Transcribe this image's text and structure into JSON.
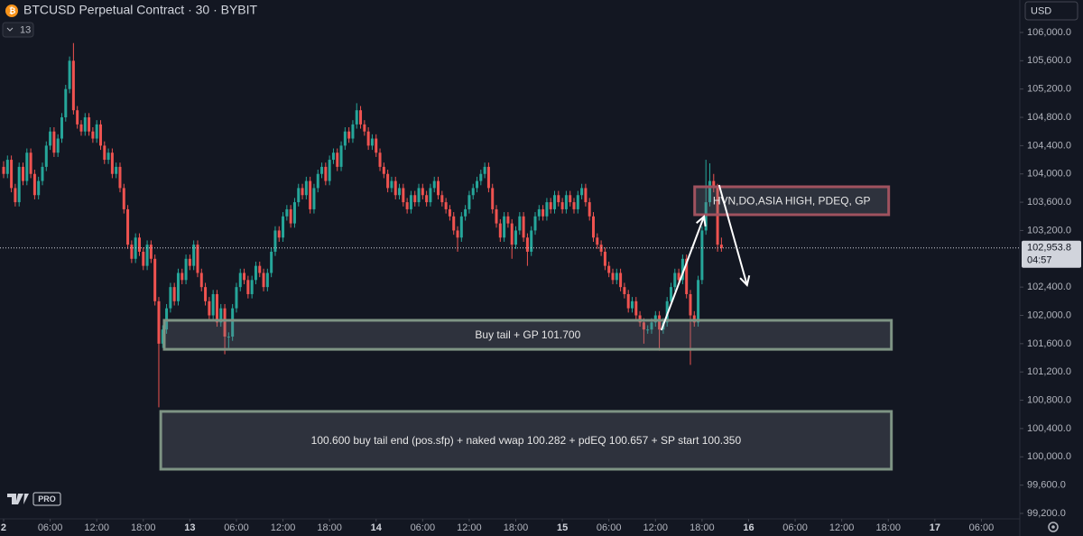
{
  "chart_data": {
    "type": "candlestick",
    "title": "BTCUSD Perpetual Contract · 30 · BYBIT",
    "indicators_badge": "13",
    "currency": "USD",
    "logo_badge": "PRO",
    "up_color": "#26a69a",
    "down_color": "#ef5350",
    "xlim": [
      -0.93,
      261.9
    ],
    "ylim": [
      99123,
      106459
    ],
    "xticks": [
      {
        "value": 0,
        "label": "2"
      },
      {
        "value": 12,
        "label": "06:00"
      },
      {
        "value": 24,
        "label": "12:00"
      },
      {
        "value": 36,
        "label": "18:00"
      },
      {
        "value": 48,
        "label": "13"
      },
      {
        "value": 60,
        "label": "06:00"
      },
      {
        "value": 72,
        "label": "12:00"
      },
      {
        "value": 84,
        "label": "18:00"
      },
      {
        "value": 96,
        "label": "14"
      },
      {
        "value": 108,
        "label": "06:00"
      },
      {
        "value": 120,
        "label": "12:00"
      },
      {
        "value": 132,
        "label": "18:00"
      },
      {
        "value": 144,
        "label": "15"
      },
      {
        "value": 156,
        "label": "06:00"
      },
      {
        "value": 168,
        "label": "12:00"
      },
      {
        "value": 180,
        "label": "18:00"
      },
      {
        "value": 192,
        "label": "16"
      },
      {
        "value": 204,
        "label": "06:00"
      },
      {
        "value": 216,
        "label": "12:00"
      },
      {
        "value": 228,
        "label": "18:00"
      },
      {
        "value": 240,
        "label": "17"
      },
      {
        "value": 252,
        "label": "06:00"
      }
    ],
    "yticks": [
      {
        "value": 99200,
        "label": "99,200.0"
      },
      {
        "value": 99600,
        "label": "99,600.0"
      },
      {
        "value": 100000,
        "label": "100,000.0"
      },
      {
        "value": 100400,
        "label": "100,400.0"
      },
      {
        "value": 100800,
        "label": "100,800.0"
      },
      {
        "value": 101200,
        "label": "101,200.0"
      },
      {
        "value": 101600,
        "label": "101,600.0"
      },
      {
        "value": 102000,
        "label": "102,000.0"
      },
      {
        "value": 102400,
        "label": "102,400.0"
      },
      {
        "value": 103200,
        "label": "103,200.0"
      },
      {
        "value": 103600,
        "label": "103,600.0"
      },
      {
        "value": 104000,
        "label": "104,000.0"
      },
      {
        "value": 104400,
        "label": "104,400.0"
      },
      {
        "value": 104800,
        "label": "104,800.0"
      },
      {
        "value": 105200,
        "label": "105,200.0"
      },
      {
        "value": 105600,
        "label": "105,600.0"
      },
      {
        "value": 106000,
        "label": "106,000.0"
      }
    ],
    "last_price": {
      "value": 102953.8,
      "label": "102,953.8"
    },
    "countdown": "04:57",
    "ohlc": [
      [
        104100,
        104180,
        103940,
        104000
      ],
      [
        104000,
        104260,
        103940,
        104200
      ],
      [
        104200,
        104260,
        103740,
        103800
      ],
      [
        103800,
        103860,
        103540,
        103600
      ],
      [
        103600,
        104160,
        103540,
        104100
      ],
      [
        104100,
        104160,
        103840,
        103900
      ],
      [
        103900,
        104360,
        103840,
        104300
      ],
      [
        104300,
        104360,
        103940,
        104000
      ],
      [
        104000,
        104060,
        103640,
        103700
      ],
      [
        103700,
        103960,
        103640,
        103900
      ],
      [
        103900,
        104160,
        103840,
        104100
      ],
      [
        104100,
        104460,
        104040,
        104400
      ],
      [
        104400,
        104660,
        104340,
        104600
      ],
      [
        104600,
        104660,
        104240,
        104300
      ],
      [
        104300,
        104560,
        104240,
        104500
      ],
      [
        104500,
        104860,
        104440,
        104800
      ],
      [
        104800,
        105260,
        104740,
        105200
      ],
      [
        105200,
        105660,
        105140,
        105600
      ],
      [
        105600,
        105850,
        104840,
        104900
      ],
      [
        104900,
        104960,
        104640,
        104700
      ],
      [
        104700,
        104760,
        104540,
        104600
      ],
      [
        104600,
        104860,
        104540,
        104800
      ],
      [
        104800,
        104860,
        104540,
        104600
      ],
      [
        104600,
        104660,
        104440,
        104500
      ],
      [
        104500,
        104760,
        104440,
        104700
      ],
      [
        104700,
        104760,
        104340,
        104400
      ],
      [
        104400,
        104460,
        104140,
        104200
      ],
      [
        104200,
        104360,
        104140,
        104300
      ],
      [
        104300,
        104360,
        103940,
        104000
      ],
      [
        104000,
        104160,
        103940,
        104100
      ],
      [
        104100,
        104160,
        103740,
        103800
      ],
      [
        103800,
        103860,
        103440,
        103500
      ],
      [
        103500,
        103560,
        102940,
        103000
      ],
      [
        103000,
        103060,
        102740,
        102800
      ],
      [
        102800,
        103160,
        102740,
        103100
      ],
      [
        103100,
        103160,
        102840,
        102900
      ],
      [
        102900,
        102960,
        102640,
        102700
      ],
      [
        102700,
        103060,
        102640,
        103000
      ],
      [
        103000,
        103060,
        102740,
        102800
      ],
      [
        102800,
        102860,
        102140,
        102200
      ],
      [
        102200,
        102260,
        100700,
        101600
      ],
      [
        101600,
        101860,
        101540,
        101800
      ],
      [
        101800,
        102160,
        101740,
        102100
      ],
      [
        102100,
        102460,
        102040,
        102400
      ],
      [
        102400,
        102460,
        102140,
        102200
      ],
      [
        102200,
        102660,
        102140,
        102600
      ],
      [
        102600,
        102660,
        102440,
        102500
      ],
      [
        102500,
        102860,
        102440,
        102800
      ],
      [
        102800,
        102860,
        102640,
        102700
      ],
      [
        102700,
        103060,
        102640,
        103000
      ],
      [
        103000,
        103060,
        102540,
        102600
      ],
      [
        102600,
        102660,
        102340,
        102400
      ],
      [
        102400,
        102460,
        102140,
        102200
      ],
      [
        102200,
        102260,
        101940,
        102000
      ],
      [
        102000,
        102360,
        101940,
        102300
      ],
      [
        102300,
        102360,
        101840,
        101900
      ],
      [
        101900,
        102160,
        101840,
        102100
      ],
      [
        102100,
        102160,
        101450,
        101700
      ],
      [
        101700,
        101760,
        101540,
        101700
      ],
      [
        101700,
        102160,
        101640,
        102100
      ],
      [
        102100,
        102460,
        102040,
        102400
      ],
      [
        102400,
        102660,
        102340,
        102600
      ],
      [
        102600,
        102660,
        102440,
        102500
      ],
      [
        102500,
        102560,
        102240,
        102300
      ],
      [
        102300,
        102560,
        102240,
        102500
      ],
      [
        102500,
        102760,
        102440,
        102700
      ],
      [
        102700,
        102760,
        102540,
        102600
      ],
      [
        102600,
        102660,
        102340,
        102400
      ],
      [
        102400,
        102660,
        102340,
        102600
      ],
      [
        102600,
        102960,
        102540,
        102900
      ],
      [
        102900,
        103260,
        102840,
        103200
      ],
      [
        103200,
        103260,
        103040,
        103100
      ],
      [
        103100,
        103460,
        103040,
        103400
      ],
      [
        103400,
        103560,
        103340,
        103500
      ],
      [
        103500,
        103560,
        103240,
        103300
      ],
      [
        103300,
        103660,
        103240,
        103600
      ],
      [
        103600,
        103860,
        103540,
        103800
      ],
      [
        103800,
        103860,
        103640,
        103700
      ],
      [
        103700,
        103960,
        103640,
        103900
      ],
      [
        103900,
        103960,
        103440,
        103500
      ],
      [
        103500,
        103860,
        103440,
        103800
      ],
      [
        103800,
        104060,
        103740,
        104000
      ],
      [
        104000,
        104160,
        103940,
        104100
      ],
      [
        104100,
        104160,
        103840,
        103900
      ],
      [
        103900,
        104260,
        103840,
        104200
      ],
      [
        104200,
        104360,
        104140,
        104300
      ],
      [
        104300,
        104360,
        104040,
        104100
      ],
      [
        104100,
        104460,
        104040,
        104400
      ],
      [
        104400,
        104660,
        104340,
        104600
      ],
      [
        104600,
        104660,
        104440,
        104500
      ],
      [
        104500,
        104760,
        104440,
        104700
      ],
      [
        104700,
        105000,
        104640,
        104900
      ],
      [
        104900,
        104960,
        104640,
        104700
      ],
      [
        104700,
        104760,
        104540,
        104600
      ],
      [
        104600,
        104660,
        104340,
        104400
      ],
      [
        104400,
        104560,
        104340,
        104500
      ],
      [
        104500,
        104560,
        104240,
        104300
      ],
      [
        104300,
        104360,
        104040,
        104100
      ],
      [
        104100,
        104160,
        103940,
        104000
      ],
      [
        104000,
        104060,
        103740,
        103800
      ],
      [
        103800,
        103960,
        103740,
        103900
      ],
      [
        103900,
        103960,
        103640,
        103700
      ],
      [
        103700,
        103860,
        103640,
        103800
      ],
      [
        103800,
        103860,
        103540,
        103600
      ],
      [
        103600,
        103660,
        103440,
        103500
      ],
      [
        103500,
        103760,
        103440,
        103700
      ],
      [
        103700,
        103760,
        103540,
        103600
      ],
      [
        103600,
        103860,
        103540,
        103800
      ],
      [
        103800,
        103860,
        103640,
        103700
      ],
      [
        103700,
        103760,
        103540,
        103600
      ],
      [
        103600,
        103860,
        103540,
        103800
      ],
      [
        103800,
        103960,
        103740,
        103900
      ],
      [
        103900,
        103960,
        103640,
        103700
      ],
      [
        103700,
        103760,
        103540,
        103600
      ],
      [
        103600,
        103660,
        103440,
        103500
      ],
      [
        103500,
        103560,
        103340,
        103400
      ],
      [
        103400,
        103460,
        103140,
        103200
      ],
      [
        103200,
        103260,
        102900,
        103100
      ],
      [
        103100,
        103460,
        103040,
        103400
      ],
      [
        103400,
        103560,
        103340,
        103500
      ],
      [
        103500,
        103760,
        103440,
        103700
      ],
      [
        103700,
        103860,
        103640,
        103800
      ],
      [
        103800,
        103960,
        103740,
        103900
      ],
      [
        103900,
        104060,
        103840,
        104000
      ],
      [
        104000,
        104160,
        103940,
        104100
      ],
      [
        104100,
        104160,
        103740,
        103800
      ],
      [
        103800,
        103860,
        103440,
        103500
      ],
      [
        103500,
        103560,
        103240,
        103300
      ],
      [
        103300,
        103360,
        103040,
        103100
      ],
      [
        103100,
        103460,
        103040,
        103400
      ],
      [
        103400,
        103460,
        103240,
        103300
      ],
      [
        103300,
        103360,
        102800,
        103000
      ],
      [
        103000,
        103260,
        102940,
        103200
      ],
      [
        103200,
        103460,
        103140,
        103400
      ],
      [
        103400,
        103460,
        103040,
        103100
      ],
      [
        103100,
        103160,
        102700,
        102900
      ],
      [
        102900,
        103260,
        102840,
        103200
      ],
      [
        103200,
        103460,
        103140,
        103400
      ],
      [
        103400,
        103560,
        103340,
        103500
      ],
      [
        103500,
        103560,
        103340,
        103400
      ],
      [
        103400,
        103660,
        103340,
        103600
      ],
      [
        103600,
        103660,
        103440,
        103500
      ],
      [
        103500,
        103760,
        103440,
        103700
      ],
      [
        103700,
        103760,
        103540,
        103600
      ],
      [
        103600,
        103660,
        103440,
        103500
      ],
      [
        103500,
        103760,
        103440,
        103700
      ],
      [
        103700,
        103760,
        103540,
        103600
      ],
      [
        103600,
        103660,
        103440,
        103500
      ],
      [
        103500,
        103760,
        103440,
        103700
      ],
      [
        103700,
        103860,
        103640,
        103800
      ],
      [
        103800,
        103860,
        103540,
        103600
      ],
      [
        103600,
        103660,
        103340,
        103400
      ],
      [
        103400,
        103460,
        103040,
        103100
      ],
      [
        103100,
        103160,
        102940,
        103000
      ],
      [
        103000,
        103060,
        102840,
        102900
      ],
      [
        102900,
        102960,
        102640,
        102700
      ],
      [
        102700,
        102760,
        102540,
        102600
      ],
      [
        102600,
        102660,
        102440,
        102500
      ],
      [
        102500,
        102660,
        102440,
        102600
      ],
      [
        102600,
        102660,
        102340,
        102400
      ],
      [
        102400,
        102460,
        102240,
        102300
      ],
      [
        102300,
        102360,
        102040,
        102100
      ],
      [
        102100,
        102260,
        102040,
        102200
      ],
      [
        102200,
        102260,
        101940,
        102000
      ],
      [
        102000,
        102060,
        101840,
        101900
      ],
      [
        101900,
        101960,
        101600,
        101800
      ],
      [
        101800,
        101860,
        101740,
        101800
      ],
      [
        101800,
        101960,
        101740,
        101900
      ],
      [
        101900,
        102060,
        101840,
        102000
      ],
      [
        102000,
        102060,
        101500,
        101800
      ],
      [
        101800,
        101960,
        101740,
        101900
      ],
      [
        101900,
        102260,
        101840,
        102200
      ],
      [
        102200,
        102460,
        102140,
        102400
      ],
      [
        102400,
        102660,
        102340,
        102600
      ],
      [
        102600,
        102660,
        102440,
        102500
      ],
      [
        102500,
        102860,
        102440,
        102800
      ],
      [
        102800,
        102860,
        102240,
        102300
      ],
      [
        102300,
        102360,
        101300,
        102000
      ],
      [
        102000,
        102060,
        101840,
        101900
      ],
      [
        101900,
        102560,
        101840,
        102500
      ],
      [
        102500,
        103260,
        102440,
        103200
      ],
      [
        103200,
        104200,
        103140,
        103600
      ],
      [
        103600,
        104150,
        103540,
        103900
      ],
      [
        103900,
        104000,
        103740,
        103800
      ],
      [
        103800,
        103860,
        102900,
        103000
      ],
      [
        103000,
        103100,
        102900,
        102953.8
      ]
    ],
    "zones": [
      {
        "label": "Buy tail + GP 101.700",
        "top": 101930,
        "bottom": 101520,
        "start": 41.4,
        "end": 228.8,
        "color": "#7e9484"
      },
      {
        "label": "100.600 buy tail end (pos.sfp) + naked vwap 100.282 + pdEQ 100.657 + SP start 100.350",
        "top": 100642,
        "bottom": 99825,
        "start": 40.5,
        "end": 228.8,
        "color": "#7e9484"
      },
      {
        "label": "HVN,DO,ASIA HIGH, PDEQ, GP",
        "top": 103818,
        "bottom": 103423,
        "start": 178.1,
        "end": 228.1,
        "color": "#a0525f"
      }
    ],
    "arrows": [
      {
        "from": [
          169.5,
          101790
        ],
        "to": [
          180.5,
          103397
        ]
      },
      {
        "from": [
          184.4,
          103844
        ],
        "to": [
          191.6,
          102428
        ]
      }
    ]
  }
}
